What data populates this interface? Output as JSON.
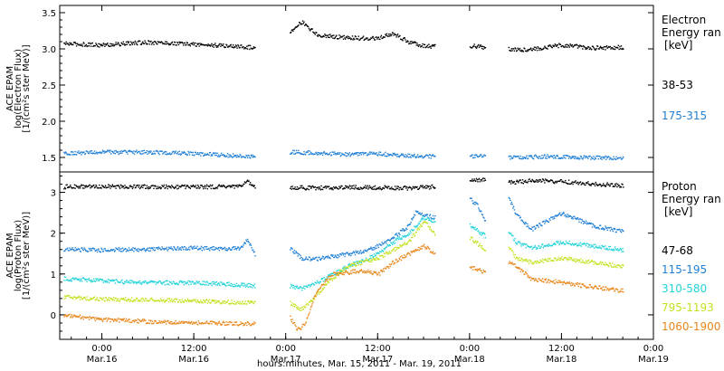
{
  "xaxis": {
    "title": "hours:minutes, Mar. 15, 2011 - Mar. 19, 2011",
    "ticks": [
      {
        "time": "0:00",
        "date": "Mar.16",
        "hour": 24
      },
      {
        "time": "12:00",
        "date": "Mar.16",
        "hour": 36
      },
      {
        "time": "0:00",
        "date": "Mar.17",
        "hour": 48
      },
      {
        "time": "12:00",
        "date": "Mar.17",
        "hour": 60
      },
      {
        "time": "0:00",
        "date": "Mar.18",
        "hour": 72
      },
      {
        "time": "12:00",
        "date": "Mar.18",
        "hour": 84
      },
      {
        "time": "0:00",
        "date": "Mar.19",
        "hour": 96
      }
    ]
  },
  "panels": {
    "electron": {
      "ylabel": [
        "ACE EPAM",
        "log(Electron Flux)",
        "[1/(cm²s ster MeV)]"
      ],
      "legend_title": [
        "Electron",
        "Energy ran"
      ],
      "legend_unit": "[keV]"
    },
    "proton": {
      "ylabel": [
        "ACE EPAM",
        "log(Proton Flux)",
        "[1/(cm²s ster MeV)]"
      ],
      "legend_title": [
        "Proton",
        "Energy ran"
      ],
      "legend_unit": "[keV]"
    }
  },
  "chart_data": [
    {
      "type": "scatter",
      "panel": "electron",
      "x_unit": "hours since Mar. 15, 2011 00:00",
      "xlim": [
        18.5,
        96
      ],
      "ylim": [
        1.3,
        3.6
      ],
      "yticks": [
        "1.5",
        "2.0",
        "2.5",
        "3.0",
        "3.5"
      ],
      "ytick_values": [
        1.5,
        2.0,
        2.5,
        3.0,
        3.5
      ],
      "data_gaps": [
        [
          44,
          48.5
        ],
        [
          67.5,
          72
        ],
        [
          74,
          77
        ]
      ],
      "series": [
        {
          "name": "38-53",
          "color": "#000000",
          "x": [
            19,
            24,
            30,
            36,
            42,
            44,
            48.5,
            50,
            51,
            52,
            56,
            60,
            62,
            64,
            66,
            67.5,
            72,
            74,
            77,
            80,
            84,
            88,
            92
          ],
          "y": [
            3.08,
            3.06,
            3.1,
            3.07,
            3.04,
            3.02,
            3.25,
            3.38,
            3.3,
            3.2,
            3.16,
            3.15,
            3.22,
            3.1,
            3.05,
            3.04,
            3.05,
            3.03,
            3.0,
            3.0,
            3.06,
            3.02,
            3.03
          ]
        },
        {
          "name": "175-315",
          "color": "#1f7fd6",
          "x": [
            19,
            24,
            30,
            36,
            42,
            44,
            48.5,
            52,
            56,
            60,
            64,
            67.5,
            72,
            74,
            77,
            82,
            86,
            90,
            92
          ],
          "y": [
            1.57,
            1.58,
            1.58,
            1.56,
            1.53,
            1.52,
            1.58,
            1.57,
            1.55,
            1.56,
            1.53,
            1.52,
            1.53,
            1.52,
            1.5,
            1.52,
            1.51,
            1.5,
            1.51
          ]
        }
      ]
    },
    {
      "type": "scatter",
      "panel": "proton",
      "x_unit": "hours since Mar. 15, 2011 00:00",
      "xlim": [
        18.5,
        96
      ],
      "ylim": [
        -0.6,
        3.5
      ],
      "yticks": [
        "0",
        "1",
        "2",
        "3"
      ],
      "ytick_values": [
        0,
        1,
        2,
        3
      ],
      "data_gaps": [
        [
          44,
          48.5
        ],
        [
          67.5,
          72
        ],
        [
          74,
          77
        ]
      ],
      "series": [
        {
          "name": "47-68",
          "color": "#000000",
          "x": [
            19,
            24,
            30,
            36,
            42,
            43,
            44,
            48.5,
            52,
            56,
            60,
            64,
            67.5,
            72,
            74,
            77,
            80,
            84,
            88,
            92
          ],
          "y": [
            3.15,
            3.16,
            3.15,
            3.15,
            3.15,
            3.3,
            3.1,
            3.14,
            3.12,
            3.14,
            3.13,
            3.12,
            3.15,
            3.3,
            3.32,
            3.25,
            3.3,
            3.28,
            3.22,
            3.18
          ]
        },
        {
          "name": "115-195",
          "color": "#1f7fd6",
          "x": [
            19,
            24,
            30,
            36,
            40,
            42,
            43,
            44,
            48.5,
            50,
            52,
            56,
            58,
            60,
            62,
            64,
            65,
            66,
            67.5,
            72,
            73,
            74,
            77,
            78,
            80,
            84,
            86,
            88,
            92
          ],
          "y": [
            1.62,
            1.6,
            1.62,
            1.65,
            1.62,
            1.65,
            1.85,
            1.45,
            1.65,
            1.4,
            1.38,
            1.5,
            1.55,
            1.7,
            1.9,
            2.2,
            2.55,
            2.45,
            2.4,
            2.85,
            2.7,
            2.3,
            2.9,
            2.5,
            2.1,
            2.5,
            2.35,
            2.2,
            2.05
          ]
        },
        {
          "name": "310-580",
          "color": "#22d3d8",
          "x": [
            19,
            24,
            30,
            36,
            42,
            44,
            48.5,
            50,
            52,
            56,
            60,
            62,
            64,
            66,
            67.5,
            72,
            74,
            77,
            78,
            80,
            84,
            88,
            92
          ],
          "y": [
            0.9,
            0.85,
            0.8,
            0.8,
            0.75,
            0.72,
            0.72,
            0.65,
            0.8,
            1.2,
            1.5,
            1.8,
            2.0,
            2.4,
            2.3,
            2.2,
            1.95,
            2.05,
            1.8,
            1.65,
            1.8,
            1.7,
            1.6
          ]
        },
        {
          "name": "795-1193",
          "color": "#c6e020",
          "x": [
            19,
            24,
            30,
            36,
            42,
            44,
            48.5,
            50,
            52,
            54,
            56,
            60,
            62,
            64,
            66,
            67.5,
            72,
            74,
            77,
            78,
            80,
            84,
            88,
            92
          ],
          "y": [
            0.45,
            0.4,
            0.38,
            0.35,
            0.32,
            0.3,
            0.3,
            0.15,
            0.5,
            0.9,
            1.2,
            1.4,
            1.6,
            1.8,
            2.3,
            2.0,
            1.9,
            1.6,
            1.7,
            1.4,
            1.3,
            1.4,
            1.3,
            1.2
          ]
        },
        {
          "name": "1060-1900",
          "color": "#e8861a",
          "x": [
            19,
            24,
            30,
            36,
            42,
            44,
            48.5,
            49.5,
            50.5,
            52,
            54,
            56,
            58,
            60,
            62,
            64,
            66,
            67.5,
            72,
            74,
            77,
            78,
            80,
            84,
            88,
            92
          ],
          "y": [
            0.0,
            -0.1,
            -0.15,
            -0.18,
            -0.2,
            -0.2,
            -0.05,
            -0.35,
            -0.2,
            0.6,
            1.0,
            1.05,
            1.1,
            1.0,
            1.3,
            1.5,
            1.7,
            1.5,
            1.2,
            1.05,
            1.3,
            1.2,
            0.9,
            0.8,
            0.7,
            0.6
          ]
        }
      ]
    }
  ]
}
